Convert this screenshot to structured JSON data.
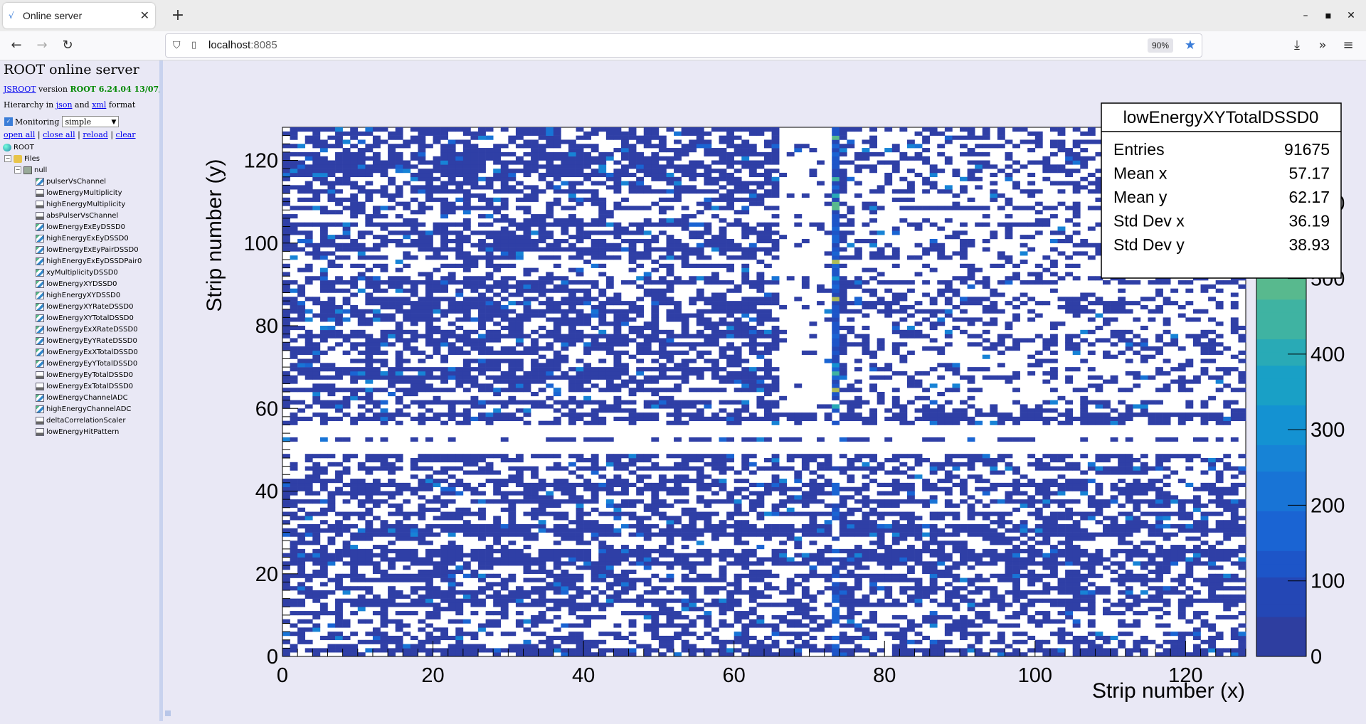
{
  "browser": {
    "tab_title": "Online server",
    "url_host": "localhost",
    "url_port": ":8085",
    "zoom": "90%"
  },
  "left_panel": {
    "title": "ROOT online server",
    "version_link": "JSROOT",
    "version_text": "version",
    "version_value": "ROOT 6.24.04  13/07/2",
    "hierarchy_prefix": "Hierarchy in",
    "json_link": "json",
    "and_text": "and",
    "xml_link": "xml",
    "format_text": "format",
    "monitoring_label": "Monitoring",
    "monitoring_mode": "simple",
    "actions": [
      "open all",
      "close all",
      "reload",
      "clear"
    ],
    "tree_root": "ROOT",
    "tree_files": "Files",
    "tree_null": "null",
    "tree_items": [
      {
        "label": "pulserVsChannel",
        "icon": "h2-icon"
      },
      {
        "label": "lowEnergyMultiplicity",
        "icon": "h1-icon"
      },
      {
        "label": "highEnergyMultiplicity",
        "icon": "h1-icon"
      },
      {
        "label": "absPulserVsChannel",
        "icon": "h1-icon"
      },
      {
        "label": "lowEnergyExEyDSSD0",
        "icon": "h2-icon"
      },
      {
        "label": "highEnergyExEyDSSD0",
        "icon": "h2-icon"
      },
      {
        "label": "lowEnergyExEyPairDSSD0",
        "icon": "h2-icon"
      },
      {
        "label": "highEnergyExEyDSSDPair0",
        "icon": "h2-icon"
      },
      {
        "label": "xyMultiplicityDSSD0",
        "icon": "h2-icon"
      },
      {
        "label": "lowEnergyXYDSSD0",
        "icon": "h2-icon"
      },
      {
        "label": "highEnergyXYDSSD0",
        "icon": "h2-icon"
      },
      {
        "label": "lowEnergyXYRateDSSD0",
        "icon": "h2-icon"
      },
      {
        "label": "lowEnergyXYTotalDSSD0",
        "icon": "h2-icon"
      },
      {
        "label": "lowEnergyExXRateDSSD0",
        "icon": "h2-icon"
      },
      {
        "label": "lowEnergyEyYRateDSSD0",
        "icon": "h2-icon"
      },
      {
        "label": "lowEnergyExXTotalDSSD0",
        "icon": "h2-icon"
      },
      {
        "label": "lowEnergyEyYTotalDSSD0",
        "icon": "h2-icon"
      },
      {
        "label": "lowEnergyEyTotalDSSD0",
        "icon": "h1-icon"
      },
      {
        "label": "lowEnergyExTotalDSSD0",
        "icon": "h1-icon"
      },
      {
        "label": "lowEnergyChannelADC",
        "icon": "h2-icon"
      },
      {
        "label": "highEnergyChannelADC",
        "icon": "h2-icon"
      },
      {
        "label": "deltaCorrelationScaler",
        "icon": "h1-icon"
      },
      {
        "label": "lowEnergyHitPattern",
        "icon": "h1-icon"
      }
    ]
  },
  "stats_box": {
    "title": "lowEnergyXYTotalDSSD0",
    "rows": [
      {
        "label": "Entries",
        "value": "91675"
      },
      {
        "label": "Mean x",
        "value": "57.17"
      },
      {
        "label": "Mean y",
        "value": "62.17"
      },
      {
        "label": "Std Dev x",
        "value": "36.19"
      },
      {
        "label": "Std Dev y",
        "value": "38.93"
      }
    ]
  },
  "chart_data": {
    "type": "heatmap",
    "title": "",
    "xlabel": "Strip number (x)",
    "ylabel": "Strip number (y)",
    "xlim": [
      0,
      128
    ],
    "ylim": [
      0,
      128
    ],
    "x_ticks": [
      0,
      20,
      40,
      60,
      80,
      100,
      120
    ],
    "y_ticks": [
      0,
      20,
      40,
      60,
      80,
      100,
      120
    ],
    "colorbar_ticks": [
      0,
      100,
      200,
      300,
      400,
      500,
      600
    ],
    "colorbar_max": 700,
    "occupied_cell_color": "#2f3fa6",
    "palette": [
      "#2e3ea0",
      "#2447b5",
      "#1d55c8",
      "#1a64d3",
      "#1874d6",
      "#1783d6",
      "#1492d2",
      "#19a0c6",
      "#29aab6",
      "#3fb3a2",
      "#58b98e",
      "#74bd79",
      "#92be66",
      "#b0bd57",
      "#cdb84a"
    ],
    "hot_column": 73,
    "empty_rows": [
      [
        49,
        51
      ],
      [
        53,
        55
      ]
    ],
    "empty_x_range": [
      66,
      72
    ]
  }
}
